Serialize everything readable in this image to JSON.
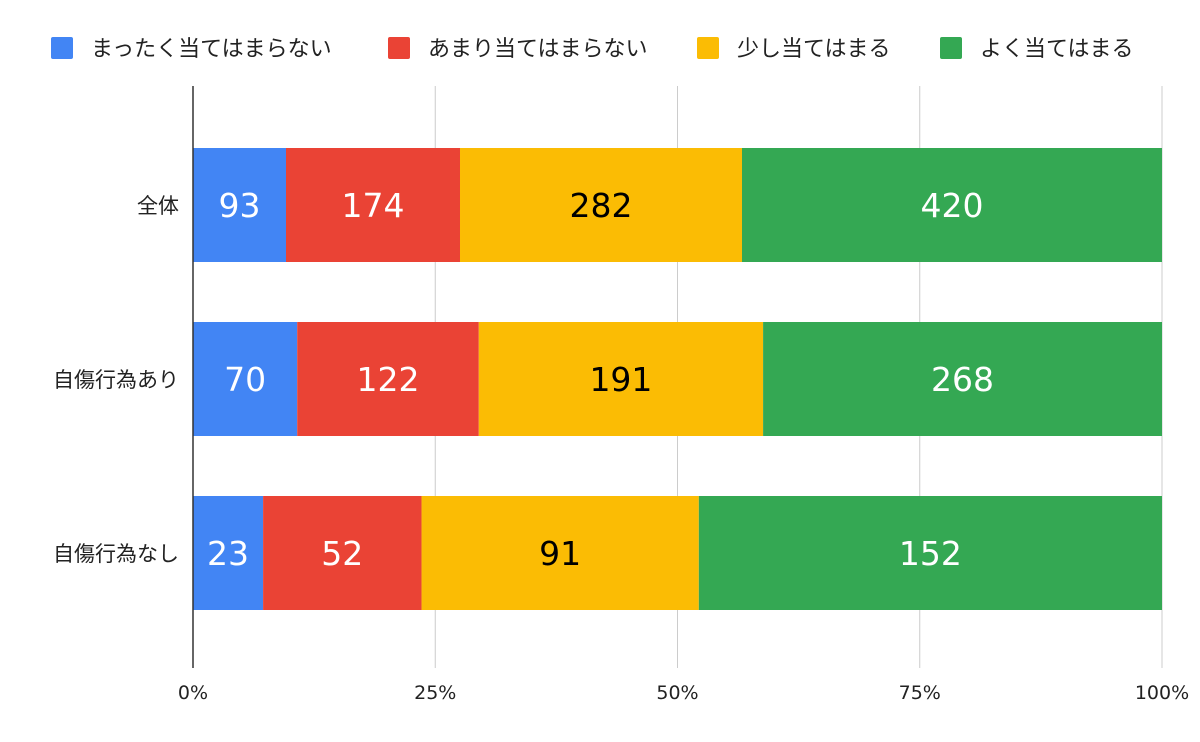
{
  "chart_data": {
    "type": "bar",
    "orientation": "horizontal",
    "stacked": "percent",
    "categories": [
      "全体",
      "自傷行為あり",
      "自傷行為なし"
    ],
    "series": [
      {
        "name": "まったく当てはまらない",
        "color": "#4285f4",
        "label_color": "#ffffff",
        "values": [
          93,
          70,
          23
        ]
      },
      {
        "name": "あまり当てはまらない",
        "color": "#ea4335",
        "label_color": "#ffffff",
        "values": [
          174,
          122,
          52
        ]
      },
      {
        "name": "少し当てはまる",
        "color": "#fbbc04",
        "label_color": "#000000",
        "values": [
          282,
          191,
          91
        ]
      },
      {
        "name": "よく当てはまる",
        "color": "#34a853",
        "label_color": "#ffffff",
        "values": [
          420,
          268,
          152
        ]
      }
    ],
    "x_ticks": [
      "0%",
      "25%",
      "50%",
      "75%",
      "100%"
    ],
    "xlim": [
      0,
      100
    ],
    "grid": true,
    "legend": "top"
  }
}
